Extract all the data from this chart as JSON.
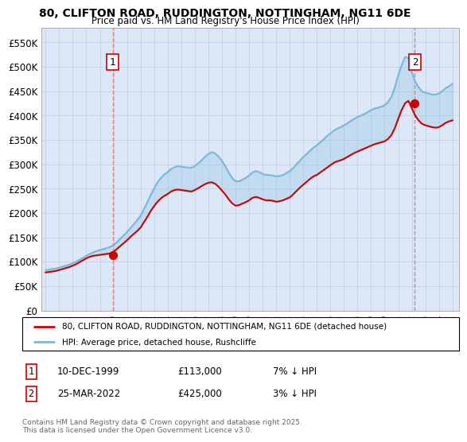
{
  "title": "80, CLIFTON ROAD, RUDDINGTON, NOTTINGHAM, NG11 6DE",
  "subtitle": "Price paid vs. HM Land Registry's House Price Index (HPI)",
  "xlim_start": 1994.7,
  "xlim_end": 2025.5,
  "ylim": [
    0,
    580000
  ],
  "yticks": [
    0,
    50000,
    100000,
    150000,
    200000,
    250000,
    300000,
    350000,
    400000,
    450000,
    500000,
    550000
  ],
  "ytick_labels": [
    "£0",
    "£50K",
    "£100K",
    "£150K",
    "£200K",
    "£250K",
    "£300K",
    "£350K",
    "£400K",
    "£450K",
    "£500K",
    "£550K"
  ],
  "xticks": [
    1995,
    1996,
    1997,
    1998,
    1999,
    2000,
    2001,
    2002,
    2003,
    2004,
    2005,
    2006,
    2007,
    2008,
    2009,
    2010,
    2011,
    2012,
    2013,
    2014,
    2015,
    2016,
    2017,
    2018,
    2019,
    2020,
    2021,
    2022,
    2023,
    2024,
    2025
  ],
  "sale1_x": 1999.95,
  "sale1_y": 113000,
  "sale1_label": "1",
  "sale1_date": "10-DEC-1999",
  "sale1_price": "£113,000",
  "sale1_hpi": "7% ↓ HPI",
  "sale2_x": 2022.23,
  "sale2_y": 425000,
  "sale2_label": "2",
  "sale2_date": "25-MAR-2022",
  "sale2_price": "£425,000",
  "sale2_hpi": "3% ↓ HPI",
  "hpi_color": "#7ab8d9",
  "price_color": "#cc0000",
  "dashed_color": "#e08080",
  "grid_color": "#c8d4e8",
  "bg_color": "#dce8f8",
  "legend_label_price": "80, CLIFTON ROAD, RUDDINGTON, NOTTINGHAM, NG11 6DE (detached house)",
  "legend_label_hpi": "HPI: Average price, detached house, Rushcliffe",
  "footnote": "Contains HM Land Registry data © Crown copyright and database right 2025.\nThis data is licensed under the Open Government Licence v3.0.",
  "hpi_data_x": [
    1995.0,
    1995.25,
    1995.5,
    1995.75,
    1996.0,
    1996.25,
    1996.5,
    1996.75,
    1997.0,
    1997.25,
    1997.5,
    1997.75,
    1998.0,
    1998.25,
    1998.5,
    1998.75,
    1999.0,
    1999.25,
    1999.5,
    1999.75,
    2000.0,
    2000.25,
    2000.5,
    2000.75,
    2001.0,
    2001.25,
    2001.5,
    2001.75,
    2002.0,
    2002.25,
    2002.5,
    2002.75,
    2003.0,
    2003.25,
    2003.5,
    2003.75,
    2004.0,
    2004.25,
    2004.5,
    2004.75,
    2005.0,
    2005.25,
    2005.5,
    2005.75,
    2006.0,
    2006.25,
    2006.5,
    2006.75,
    2007.0,
    2007.25,
    2007.5,
    2007.75,
    2008.0,
    2008.25,
    2008.5,
    2008.75,
    2009.0,
    2009.25,
    2009.5,
    2009.75,
    2010.0,
    2010.25,
    2010.5,
    2010.75,
    2011.0,
    2011.25,
    2011.5,
    2011.75,
    2012.0,
    2012.25,
    2012.5,
    2012.75,
    2013.0,
    2013.25,
    2013.5,
    2013.75,
    2014.0,
    2014.25,
    2014.5,
    2014.75,
    2015.0,
    2015.25,
    2015.5,
    2015.75,
    2016.0,
    2016.25,
    2016.5,
    2016.75,
    2017.0,
    2017.25,
    2017.5,
    2017.75,
    2018.0,
    2018.25,
    2018.5,
    2018.75,
    2019.0,
    2019.25,
    2019.5,
    2019.75,
    2020.0,
    2020.25,
    2020.5,
    2020.75,
    2021.0,
    2021.25,
    2021.5,
    2021.75,
    2022.0,
    2022.25,
    2022.5,
    2022.75,
    2023.0,
    2023.25,
    2023.5,
    2023.75,
    2024.0,
    2024.25,
    2024.5,
    2024.75,
    2025.0
  ],
  "hpi_data_y": [
    83000,
    84000,
    85000,
    86000,
    88000,
    90000,
    92000,
    94000,
    97000,
    100000,
    104000,
    108000,
    112000,
    116000,
    119000,
    122000,
    124000,
    126000,
    128000,
    130000,
    134000,
    140000,
    147000,
    154000,
    161000,
    169000,
    177000,
    185000,
    194000,
    208000,
    222000,
    237000,
    250000,
    263000,
    272000,
    279000,
    284000,
    290000,
    294000,
    296000,
    295000,
    294000,
    293000,
    293000,
    296000,
    302000,
    308000,
    315000,
    321000,
    325000,
    322000,
    316000,
    307000,
    296000,
    283000,
    272000,
    265000,
    265000,
    268000,
    272000,
    277000,
    283000,
    286000,
    284000,
    280000,
    278000,
    278000,
    277000,
    275000,
    276000,
    278000,
    282000,
    286000,
    292000,
    300000,
    307000,
    315000,
    321000,
    328000,
    334000,
    339000,
    345000,
    351000,
    358000,
    363000,
    369000,
    373000,
    376000,
    380000,
    384000,
    389000,
    393000,
    397000,
    400000,
    403000,
    407000,
    411000,
    414000,
    416000,
    418000,
    421000,
    428000,
    438000,
    458000,
    483000,
    503000,
    520000,
    518000,
    490000,
    470000,
    458000,
    449000,
    447000,
    445000,
    443000,
    443000,
    445000,
    450000,
    456000,
    460000,
    465000
  ],
  "price_data_x": [
    1995.0,
    1995.25,
    1995.5,
    1995.75,
    1996.0,
    1996.25,
    1996.5,
    1996.75,
    1997.0,
    1997.25,
    1997.5,
    1997.75,
    1998.0,
    1998.25,
    1998.5,
    1998.75,
    1999.0,
    1999.25,
    1999.5,
    1999.75,
    2000.0,
    2000.25,
    2000.5,
    2000.75,
    2001.0,
    2001.25,
    2001.5,
    2001.75,
    2002.0,
    2002.25,
    2002.5,
    2002.75,
    2003.0,
    2003.25,
    2003.5,
    2003.75,
    2004.0,
    2004.25,
    2004.5,
    2004.75,
    2005.0,
    2005.25,
    2005.5,
    2005.75,
    2006.0,
    2006.25,
    2006.5,
    2006.75,
    2007.0,
    2007.25,
    2007.5,
    2007.75,
    2008.0,
    2008.25,
    2008.5,
    2008.75,
    2009.0,
    2009.25,
    2009.5,
    2009.75,
    2010.0,
    2010.25,
    2010.5,
    2010.75,
    2011.0,
    2011.25,
    2011.5,
    2011.75,
    2012.0,
    2012.25,
    2012.5,
    2012.75,
    2013.0,
    2013.25,
    2013.5,
    2013.75,
    2014.0,
    2014.25,
    2014.5,
    2014.75,
    2015.0,
    2015.25,
    2015.5,
    2015.75,
    2016.0,
    2016.25,
    2016.5,
    2016.75,
    2017.0,
    2017.25,
    2017.5,
    2017.75,
    2018.0,
    2018.25,
    2018.5,
    2018.75,
    2019.0,
    2019.25,
    2019.5,
    2019.75,
    2020.0,
    2020.25,
    2020.5,
    2020.75,
    2021.0,
    2021.25,
    2021.5,
    2021.75,
    2022.0,
    2022.25,
    2022.5,
    2022.75,
    2023.0,
    2023.25,
    2023.5,
    2023.75,
    2024.0,
    2024.25,
    2024.5,
    2024.75,
    2025.0
  ],
  "price_data_y": [
    78000,
    79000,
    80000,
    81000,
    83000,
    85000,
    87000,
    89000,
    92000,
    95000,
    99000,
    103000,
    107000,
    110000,
    112000,
    113000,
    114000,
    115000,
    116000,
    117000,
    120000,
    126000,
    132000,
    138000,
    144000,
    151000,
    157000,
    163000,
    170000,
    181000,
    192000,
    204000,
    214000,
    223000,
    230000,
    235000,
    239000,
    244000,
    247000,
    248000,
    247000,
    246000,
    245000,
    244000,
    247000,
    251000,
    255000,
    259000,
    262000,
    263000,
    260000,
    254000,
    246000,
    238000,
    228000,
    220000,
    215000,
    216000,
    219000,
    222000,
    226000,
    231000,
    233000,
    231000,
    228000,
    226000,
    226000,
    225000,
    223000,
    224000,
    226000,
    229000,
    232000,
    238000,
    245000,
    252000,
    258000,
    264000,
    270000,
    275000,
    278000,
    283000,
    288000,
    293000,
    298000,
    303000,
    306000,
    308000,
    311000,
    315000,
    319000,
    323000,
    326000,
    329000,
    332000,
    335000,
    338000,
    341000,
    343000,
    345000,
    347000,
    352000,
    360000,
    374000,
    393000,
    411000,
    425000,
    430000,
    415000,
    400000,
    390000,
    383000,
    380000,
    378000,
    376000,
    375000,
    376000,
    380000,
    385000,
    388000,
    390000
  ]
}
